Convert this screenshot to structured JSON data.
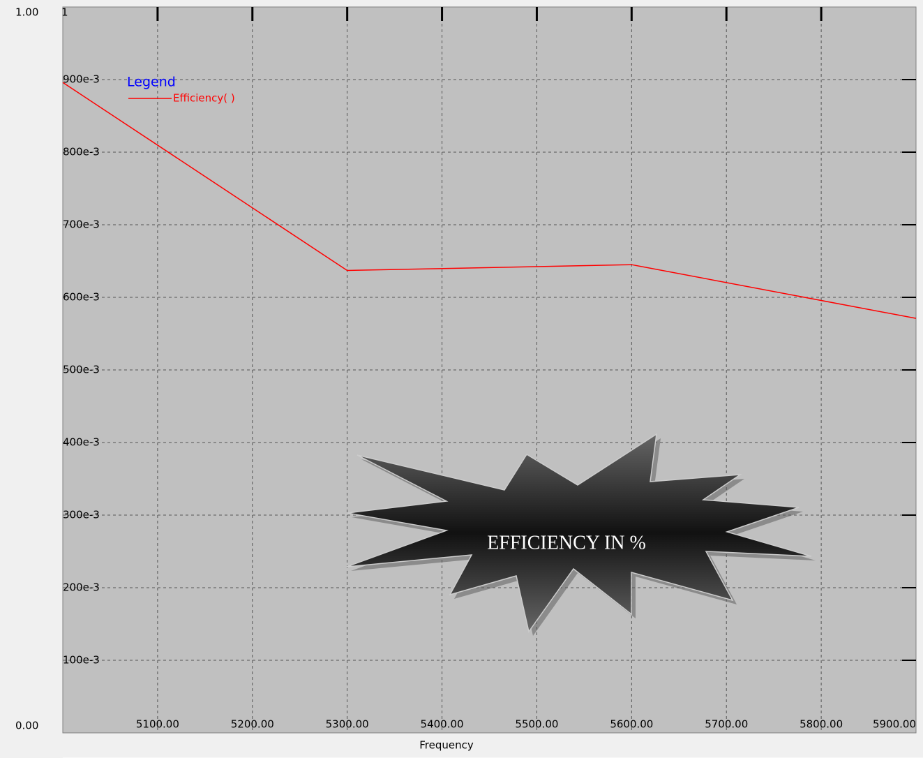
{
  "chart_data": {
    "type": "line",
    "x_label": "Frequency",
    "legend_title": "Legend",
    "y_max_label": "1",
    "annotation": "EFFICIENCY IN %",
    "x": [
      5000,
      5300,
      5600,
      5900
    ],
    "series": [
      {
        "name": "Efficiency( )",
        "color": "#ff0000",
        "values": [
          0.896,
          0.637,
          0.645,
          0.571
        ]
      }
    ],
    "xlim": [
      5000,
      5900
    ],
    "xticks": [
      {
        "value": 5100,
        "label": "5100.00"
      },
      {
        "value": 5200,
        "label": "5200.00"
      },
      {
        "value": 5300,
        "label": "5300.00"
      },
      {
        "value": 5400,
        "label": "5400.00"
      },
      {
        "value": 5500,
        "label": "5500.00"
      },
      {
        "value": 5600,
        "label": "5600.00"
      },
      {
        "value": 5700,
        "label": "5700.00"
      },
      {
        "value": 5800,
        "label": "5800.00"
      },
      {
        "value": 5900,
        "label": "5900.00"
      }
    ],
    "ylim": [
      0,
      1
    ],
    "yticks": [
      {
        "value": 0,
        "label": "0.00"
      },
      {
        "value": 0.1,
        "label": "100e-3"
      },
      {
        "value": 0.2,
        "label": "200e-3"
      },
      {
        "value": 0.3,
        "label": "300e-3"
      },
      {
        "value": 0.4,
        "label": "400e-3"
      },
      {
        "value": 0.5,
        "label": "500e-3"
      },
      {
        "value": 0.6,
        "label": "600e-3"
      },
      {
        "value": 0.7,
        "label": "700e-3"
      },
      {
        "value": 0.8,
        "label": "800e-3"
      },
      {
        "value": 0.9,
        "label": "900e-3"
      },
      {
        "value": 1,
        "label": "1.00"
      }
    ],
    "grid": true
  }
}
